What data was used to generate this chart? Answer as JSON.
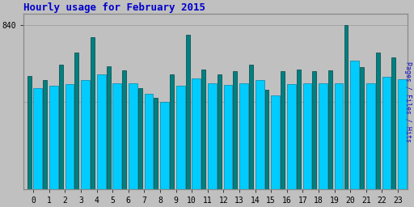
{
  "title": "Hourly usage for February 2015",
  "title_color": "#0000cc",
  "title_fontsize": 9,
  "hours": [
    0,
    1,
    2,
    3,
    4,
    5,
    6,
    7,
    8,
    9,
    10,
    11,
    12,
    13,
    14,
    15,
    16,
    17,
    18,
    19,
    20,
    21,
    22,
    23
  ],
  "green_vals": [
    580,
    560,
    640,
    700,
    780,
    630,
    610,
    520,
    470,
    590,
    790,
    615,
    590,
    605,
    640,
    510,
    605,
    615,
    605,
    610,
    840,
    625,
    700,
    675
  ],
  "cyan_vals": [
    520,
    530,
    540,
    560,
    590,
    545,
    545,
    490,
    450,
    530,
    570,
    545,
    535,
    545,
    560,
    480,
    540,
    545,
    545,
    545,
    660,
    545,
    575,
    565
  ],
  "green_color": "#008080",
  "cyan_color": "#00ccff",
  "cyan_edge": "#0088aa",
  "green_edge": "#004444",
  "background_color": "#c0c0c0",
  "ylabel": "Pages / Files / Hits",
  "ylabel_color": "#0000cc",
  "ytick_val": 840,
  "ylim_min": 0,
  "ylim_max": 900,
  "figsize": [
    5.12,
    2.56
  ],
  "dpi": 100
}
